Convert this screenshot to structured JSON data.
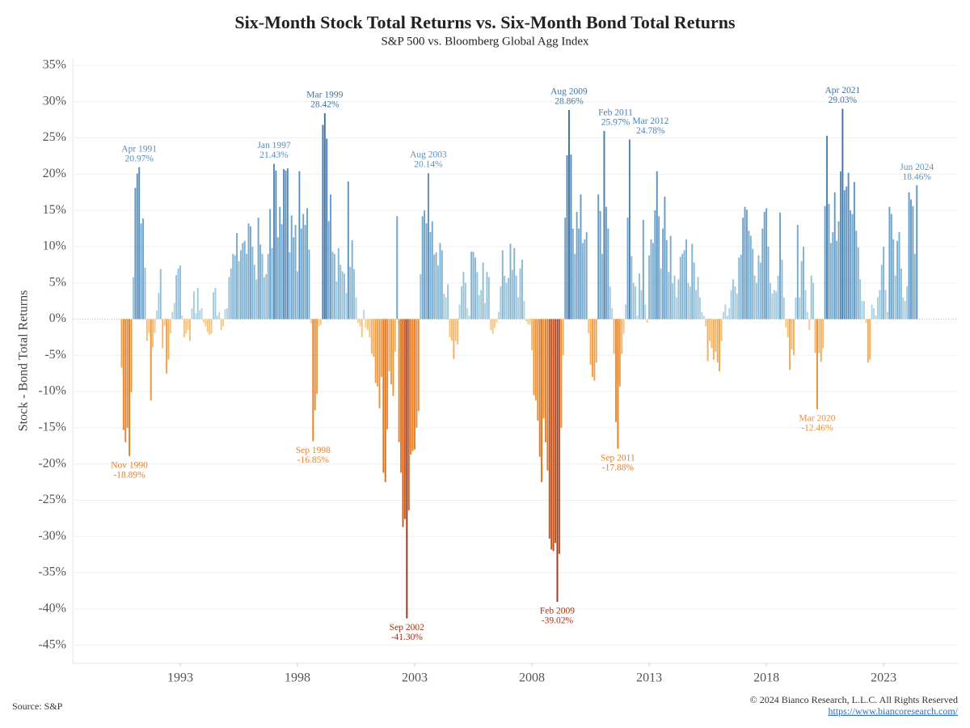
{
  "chart_data": {
    "type": "bar",
    "title": "Six-Month Stock Total Returns vs. Six-Month Bond Total Returns",
    "subtitle": "S&P 500 vs. Bloomberg Global Agg Index",
    "y_label": "Stock - Bond Total Returns",
    "source": "Source: S&P",
    "copyright": "© 2024 Bianco Research, L.L.C. All Rights Reserved",
    "url": "https://www.biancoresearch.com/",
    "x": [
      "1990-07",
      "1990-08",
      "1990-09",
      "1990-10",
      "1990-11",
      "1990-12",
      "1991-01",
      "1991-02",
      "1991-03",
      "1991-04",
      "1991-05",
      "1991-06",
      "1991-07",
      "1991-08",
      "1991-09",
      "1991-10",
      "1991-11",
      "1991-12",
      "1992-01",
      "1992-02",
      "1992-03",
      "1992-04",
      "1992-05",
      "1992-06",
      "1992-07",
      "1992-08",
      "1992-09",
      "1992-10",
      "1992-11",
      "1992-12",
      "1993-01",
      "1993-02",
      "1993-03",
      "1993-04",
      "1993-05",
      "1993-06",
      "1993-07",
      "1993-08",
      "1993-09",
      "1993-10",
      "1993-11",
      "1993-12",
      "1994-01",
      "1994-02",
      "1994-03",
      "1994-04",
      "1994-05",
      "1994-06",
      "1994-07",
      "1994-08",
      "1994-09",
      "1994-10",
      "1994-11",
      "1994-12",
      "1995-01",
      "1995-02",
      "1995-03",
      "1995-04",
      "1995-05",
      "1995-06",
      "1995-07",
      "1995-08",
      "1995-09",
      "1995-10",
      "1995-11",
      "1995-12",
      "1996-01",
      "1996-02",
      "1996-03",
      "1996-04",
      "1996-05",
      "1996-06",
      "1996-07",
      "1996-08",
      "1996-09",
      "1996-10",
      "1996-11",
      "1996-12",
      "1997-01",
      "1997-02",
      "1997-03",
      "1997-04",
      "1997-05",
      "1997-06",
      "1997-07",
      "1997-08",
      "1997-09",
      "1997-10",
      "1997-11",
      "1997-12",
      "1998-01",
      "1998-02",
      "1998-03",
      "1998-04",
      "1998-05",
      "1998-06",
      "1998-07",
      "1998-08",
      "1998-09",
      "1998-10",
      "1998-11",
      "1998-12",
      "1999-01",
      "1999-02",
      "1999-03",
      "1999-04",
      "1999-05",
      "1999-06",
      "1999-07",
      "1999-08",
      "1999-09",
      "1999-10",
      "1999-11",
      "1999-12",
      "2000-01",
      "2000-02",
      "2000-03",
      "2000-04",
      "2000-05",
      "2000-06",
      "2000-07",
      "2000-08",
      "2000-09",
      "2000-10",
      "2000-11",
      "2000-12",
      "2001-01",
      "2001-02",
      "2001-03",
      "2001-04",
      "2001-05",
      "2001-06",
      "2001-07",
      "2001-08",
      "2001-09",
      "2001-10",
      "2001-11",
      "2001-12",
      "2002-01",
      "2002-02",
      "2002-03",
      "2002-04",
      "2002-05",
      "2002-06",
      "2002-07",
      "2002-08",
      "2002-09",
      "2002-10",
      "2002-11",
      "2002-12",
      "2003-01",
      "2003-02",
      "2003-03",
      "2003-04",
      "2003-05",
      "2003-06",
      "2003-07",
      "2003-08",
      "2003-09",
      "2003-10",
      "2003-11",
      "2003-12",
      "2004-01",
      "2004-02",
      "2004-03",
      "2004-04",
      "2004-05",
      "2004-06",
      "2004-07",
      "2004-08",
      "2004-09",
      "2004-10",
      "2004-11",
      "2004-12",
      "2005-01",
      "2005-02",
      "2005-03",
      "2005-04",
      "2005-05",
      "2005-06",
      "2005-07",
      "2005-08",
      "2005-09",
      "2005-10",
      "2005-11",
      "2005-12",
      "2006-01",
      "2006-02",
      "2006-03",
      "2006-04",
      "2006-05",
      "2006-06",
      "2006-07",
      "2006-08",
      "2006-09",
      "2006-10",
      "2006-11",
      "2006-12",
      "2007-01",
      "2007-02",
      "2007-03",
      "2007-04",
      "2007-05",
      "2007-06",
      "2007-07",
      "2007-08",
      "2007-09",
      "2007-10",
      "2007-11",
      "2007-12",
      "2008-01",
      "2008-02",
      "2008-03",
      "2008-04",
      "2008-05",
      "2008-06",
      "2008-07",
      "2008-08",
      "2008-09",
      "2008-10",
      "2008-11",
      "2008-12",
      "2009-01",
      "2009-02",
      "2009-03",
      "2009-04",
      "2009-05",
      "2009-06",
      "2009-07",
      "2009-08",
      "2009-09",
      "2009-10",
      "2009-11",
      "2009-12",
      "2010-01",
      "2010-02",
      "2010-03",
      "2010-04",
      "2010-05",
      "2010-06",
      "2010-07",
      "2010-08",
      "2010-09",
      "2010-10",
      "2010-11",
      "2010-12",
      "2011-01",
      "2011-02",
      "2011-03",
      "2011-04",
      "2011-05",
      "2011-06",
      "2011-07",
      "2011-08",
      "2011-09",
      "2011-10",
      "2011-11",
      "2011-12",
      "2012-01",
      "2012-02",
      "2012-03",
      "2012-04",
      "2012-05",
      "2012-06",
      "2012-07",
      "2012-08",
      "2012-09",
      "2012-10",
      "2012-11",
      "2012-12",
      "2013-01",
      "2013-02",
      "2013-03",
      "2013-04",
      "2013-05",
      "2013-06",
      "2013-07",
      "2013-08",
      "2013-09",
      "2013-10",
      "2013-11",
      "2013-12",
      "2014-01",
      "2014-02",
      "2014-03",
      "2014-04",
      "2014-05",
      "2014-06",
      "2014-07",
      "2014-08",
      "2014-09",
      "2014-10",
      "2014-11",
      "2014-12",
      "2015-01",
      "2015-02",
      "2015-03",
      "2015-04",
      "2015-05",
      "2015-06",
      "2015-07",
      "2015-08",
      "2015-09",
      "2015-10",
      "2015-11",
      "2015-12",
      "2016-01",
      "2016-02",
      "2016-03",
      "2016-04",
      "2016-05",
      "2016-06",
      "2016-07",
      "2016-08",
      "2016-09",
      "2016-10",
      "2016-11",
      "2016-12",
      "2017-01",
      "2017-02",
      "2017-03",
      "2017-04",
      "2017-05",
      "2017-06",
      "2017-07",
      "2017-08",
      "2017-09",
      "2017-10",
      "2017-11",
      "2017-12",
      "2018-01",
      "2018-02",
      "2018-03",
      "2018-04",
      "2018-05",
      "2018-06",
      "2018-07",
      "2018-08",
      "2018-09",
      "2018-10",
      "2018-11",
      "2018-12",
      "2019-01",
      "2019-02",
      "2019-03",
      "2019-04",
      "2019-05",
      "2019-06",
      "2019-07",
      "2019-08",
      "2019-09",
      "2019-10",
      "2019-11",
      "2019-12",
      "2020-01",
      "2020-02",
      "2020-03",
      "2020-04",
      "2020-05",
      "2020-06",
      "2020-07",
      "2020-08",
      "2020-09",
      "2020-10",
      "2020-11",
      "2020-12",
      "2021-01",
      "2021-02",
      "2021-03",
      "2021-04",
      "2021-05",
      "2021-06",
      "2021-07",
      "2021-08",
      "2021-09",
      "2021-10",
      "2021-11",
      "2021-12",
      "2022-01",
      "2022-02",
      "2022-03",
      "2022-04",
      "2022-05",
      "2022-06",
      "2022-07",
      "2022-08",
      "2022-09",
      "2022-10",
      "2022-11",
      "2022-12",
      "2023-01",
      "2023-02",
      "2023-03",
      "2023-04",
      "2023-05",
      "2023-06",
      "2023-07",
      "2023-08",
      "2023-09",
      "2023-10",
      "2023-11",
      "2023-12",
      "2024-01",
      "2024-02",
      "2024-03",
      "2024-04",
      "2024-05",
      "2024-06"
    ],
    "values": [
      -6.7,
      -15.3,
      -17.0,
      -15.0,
      -18.89,
      -10.1,
      5.8,
      18.1,
      20.1,
      20.97,
      13.2,
      13.9,
      7.1,
      -3.0,
      -1.9,
      -11.2,
      -3.9,
      -1.9,
      1.2,
      3.6,
      6.9,
      -4.0,
      -1.0,
      -7.5,
      -5.6,
      -2.0,
      1.0,
      2.2,
      6.1,
      7.0,
      7.4,
      0.5,
      -2.5,
      -2.0,
      -1.5,
      -3.0,
      1.5,
      3.8,
      0.8,
      4.3,
      1.2,
      1.5,
      -0.5,
      -1.0,
      -1.8,
      -2.2,
      -2.0,
      3.7,
      4.3,
      0.5,
      1.0,
      -1.5,
      -1.0,
      1.4,
      1.5,
      5.8,
      7.0,
      9.0,
      8.8,
      11.9,
      8.0,
      9.5,
      10.5,
      10.8,
      9.0,
      13.2,
      12.8,
      10.0,
      7.5,
      5.5,
      14.0,
      10.3,
      9.0,
      5.8,
      6.2,
      9.0,
      15.2,
      9.8,
      21.43,
      20.5,
      11.3,
      15.5,
      13.1,
      20.7,
      20.5,
      20.8,
      9.2,
      14.3,
      11.3,
      13.0,
      6.6,
      20.4,
      12.5,
      14.5,
      13.0,
      15.3,
      9.6,
      -0.6,
      -16.85,
      -12.6,
      -10.3,
      -1.0,
      -0.8,
      26.8,
      28.42,
      24.9,
      13.5,
      17.2,
      9.3,
      9.0,
      5.2,
      9.8,
      7.5,
      6.6,
      6.3,
      3.6,
      19.0,
      7.2,
      10.9,
      6.9,
      3.0,
      -0.5,
      -1.0,
      -2.5,
      1.3,
      -1.2,
      -1.5,
      -2.5,
      -4.8,
      -5.2,
      -8.8,
      -9.3,
      -12.3,
      -8.0,
      -21.2,
      -22.5,
      -15.2,
      -7.2,
      -9.0,
      -10.6,
      -4.5,
      14.2,
      -17.0,
      -21.2,
      -28.7,
      -27.6,
      -41.3,
      -26.4,
      -18.7,
      -18.2,
      -18.0,
      -15.0,
      -12.7,
      6.2,
      14.2,
      15.0,
      13.2,
      20.14,
      12.0,
      13.5,
      8.9,
      9.2,
      7.4,
      10.5,
      9.5,
      3.5,
      3.0,
      4.8,
      -2.5,
      -3.0,
      -5.5,
      -3.0,
      -3.5,
      2.0,
      4.5,
      6.5,
      5.0,
      1.5,
      0.5,
      9.3,
      9.3,
      8.5,
      6.5,
      3.3,
      4.0,
      7.8,
      2.2,
      6.5,
      5.8,
      -1.5,
      -2.0,
      -1.2,
      -0.5,
      1.0,
      4.5,
      9.5,
      6.0,
      5.0,
      5.7,
      10.4,
      6.8,
      9.8,
      6.0,
      3.0,
      7.0,
      8.2,
      2.5,
      -0.3,
      -0.7,
      -0.8,
      -4.3,
      -10.5,
      -11.2,
      -14.0,
      -19.0,
      -22.5,
      -13.7,
      -17.0,
      -20.9,
      -30.3,
      -31.8,
      -32.0,
      -30.9,
      -39.02,
      -32.4,
      -15.0,
      -5.0,
      14.0,
      22.6,
      28.86,
      22.7,
      12.5,
      9.0,
      14.8,
      12.5,
      17.2,
      10.5,
      11.0,
      12.0,
      -2.0,
      -6.3,
      -8.0,
      -8.5,
      -6.0,
      17.2,
      14.9,
      9.0,
      25.97,
      15.5,
      12.5,
      4.5,
      1.5,
      -4.8,
      -14.2,
      -17.88,
      -9.3,
      -4.8,
      -2.0,
      2.0,
      14.0,
      24.78,
      8.7,
      5.0,
      4.5,
      0.5,
      6.3,
      4.0,
      13.7,
      2.0,
      -0.5,
      8.8,
      11.0,
      10.5,
      15.0,
      20.4,
      14.2,
      7.0,
      12.5,
      16.9,
      10.9,
      6.5,
      11.5,
      5.0,
      6.0,
      3.0,
      5.5,
      8.6,
      9.0,
      9.5,
      11.0,
      5.0,
      4.5,
      10.4,
      7.8,
      4.0,
      5.8,
      3.0,
      1.0,
      0.5,
      -1.0,
      -5.8,
      -3.0,
      -4.0,
      -5.6,
      -4.5,
      -6.0,
      -7.2,
      -3.0,
      1.0,
      2.0,
      0.5,
      1.5,
      4.0,
      5.5,
      4.5,
      3.5,
      8.5,
      8.9,
      14.0,
      15.5,
      15.1,
      12.2,
      11.5,
      9.7,
      6.0,
      5.0,
      8.8,
      7.8,
      12.5,
      14.8,
      15.3,
      10.0,
      5.0,
      3.5,
      4.0,
      3.8,
      6.0,
      14.7,
      8.2,
      3.0,
      -1.2,
      -2.5,
      -7.0,
      -4.2,
      -5.0,
      3.0,
      13.0,
      3.0,
      8.0,
      10.0,
      4.0,
      1.0,
      -1.5,
      6.0,
      5.0,
      -4.7,
      -12.46,
      -4.7,
      -5.9,
      -4.0,
      15.6,
      25.3,
      15.9,
      10.5,
      12.0,
      17.5,
      10.8,
      13.5,
      20.4,
      29.03,
      17.8,
      18.3,
      20.2,
      15.0,
      14.5,
      18.9,
      12.2,
      9.9,
      5.5,
      2.5,
      2.5,
      -0.5,
      -6.0,
      -5.6,
      2.0,
      1.5,
      0.5,
      3.0,
      4.0,
      7.5,
      10.0,
      4.0,
      1.0,
      15.5,
      14.5,
      11.0,
      6.0,
      10.8,
      12.0,
      7.0,
      3.0,
      2.5,
      4.5,
      17.5,
      16.5,
      15.6,
      9.0,
      18.46
    ],
    "annotations": [
      {
        "x": "1990-11",
        "label": "Nov 1990",
        "value_label": "-18.89%"
      },
      {
        "x": "1991-04",
        "label": "Apr 1991",
        "value_label": "20.97%"
      },
      {
        "x": "1997-01",
        "label": "Jan 1997",
        "value_label": "21.43%"
      },
      {
        "x": "1998-09",
        "label": "Sep 1998",
        "value_label": "-16.85%"
      },
      {
        "x": "1999-03",
        "label": "Mar 1999",
        "value_label": "28.42%"
      },
      {
        "x": "2002-09",
        "label": "Sep 2002",
        "value_label": "-41.30%"
      },
      {
        "x": "2003-08",
        "label": "Aug 2003",
        "value_label": "20.14%"
      },
      {
        "x": "2009-02",
        "label": "Feb 2009",
        "value_label": "-39.02%"
      },
      {
        "x": "2009-08",
        "label": "Aug 2009",
        "value_label": "28.86%"
      },
      {
        "x": "2011-02",
        "label": "Feb 2011",
        "value_label": "25.97%"
      },
      {
        "x": "2011-09",
        "label": "Sep 2011",
        "value_label": "-17.88%"
      },
      {
        "x": "2012-03",
        "label": "Mar 2012",
        "value_label": "24.78%"
      },
      {
        "x": "2020-03",
        "label": "Mar 2020",
        "value_label": "-12.46%"
      },
      {
        "x": "2021-04",
        "label": "Apr 2021",
        "value_label": "29.03%"
      },
      {
        "x": "2024-06",
        "label": "Jun 2024",
        "value_label": "18.46%"
      }
    ],
    "negative_colors": [
      {
        "value": -40,
        "color": "#a33016"
      },
      {
        "value": -20,
        "color": "#e37a22"
      },
      {
        "value": -8,
        "color": "#f29e45"
      },
      {
        "value": 0,
        "color": "#fbd08e"
      }
    ],
    "positive_colors": [
      {
        "value": 0,
        "color": "#bcd9e4"
      },
      {
        "value": 10,
        "color": "#80b3d2"
      },
      {
        "value": 20,
        "color": "#5a91c0"
      },
      {
        "value": 30,
        "color": "#3c70a3"
      }
    ],
    "xlim": [
      "1988-06",
      "2026-03"
    ],
    "xticks": [
      {
        "value": "1993-01",
        "label": "1993"
      },
      {
        "value": "1998-01",
        "label": "1998"
      },
      {
        "value": "2003-01",
        "label": "2003"
      },
      {
        "value": "2008-01",
        "label": "2008"
      },
      {
        "value": "2013-01",
        "label": "2013"
      },
      {
        "value": "2018-01",
        "label": "2018"
      },
      {
        "value": "2023-01",
        "label": "2023"
      }
    ],
    "ylim": [
      -47.5,
      36
    ],
    "yticks": [
      {
        "value": -45,
        "label": "-45%"
      },
      {
        "value": -40,
        "label": "-40%"
      },
      {
        "value": -35,
        "label": "-35%"
      },
      {
        "value": -30,
        "label": "-30%"
      },
      {
        "value": -25,
        "label": "-25%"
      },
      {
        "value": -20,
        "label": "-20%"
      },
      {
        "value": -15,
        "label": "-15%"
      },
      {
        "value": -10,
        "label": "-10%"
      },
      {
        "value": -5,
        "label": "-5%"
      },
      {
        "value": 0,
        "label": "0%"
      },
      {
        "value": 5,
        "label": "5%"
      },
      {
        "value": 10,
        "label": "10%"
      },
      {
        "value": 15,
        "label": "15%"
      },
      {
        "value": 20,
        "label": "20%"
      },
      {
        "value": 25,
        "label": "25%"
      },
      {
        "value": 30,
        "label": "30%"
      },
      {
        "value": 35,
        "label": "35%"
      }
    ],
    "grid": true
  }
}
